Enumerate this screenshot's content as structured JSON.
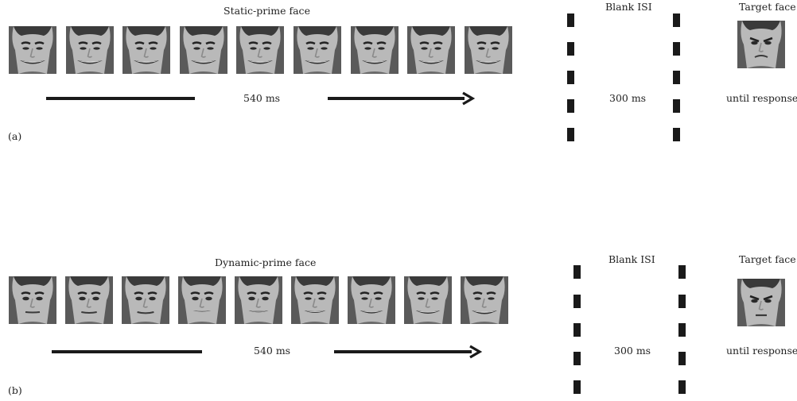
{
  "panel_a": {
    "prime_title": "Static-prime face",
    "prime_duration": "540 ms",
    "isi_title": "Blank ISI",
    "isi_duration": "300 ms",
    "target_title": "Target face",
    "target_duration": "until response",
    "panel_label": "(a)",
    "prime_expressions": [
      1,
      1,
      1,
      1,
      1,
      1,
      1,
      1,
      1
    ],
    "target_expression": "frown"
  },
  "panel_b": {
    "prime_title": "Dynamic-prime face",
    "prime_duration": "540 ms",
    "isi_title": "Blank ISI",
    "isi_duration": "300 ms",
    "target_title": "Target face",
    "target_duration": "until response",
    "panel_label": "(b)",
    "prime_expressions": [
      0,
      0.1,
      0.2,
      0.35,
      0.5,
      0.65,
      0.8,
      0.9,
      1
    ],
    "target_expression": "angry"
  },
  "colors": {
    "ink": "#1a1a1a",
    "text": "#222222",
    "face_bg": "#5a5a5a",
    "skin": "#b9b9b9"
  }
}
